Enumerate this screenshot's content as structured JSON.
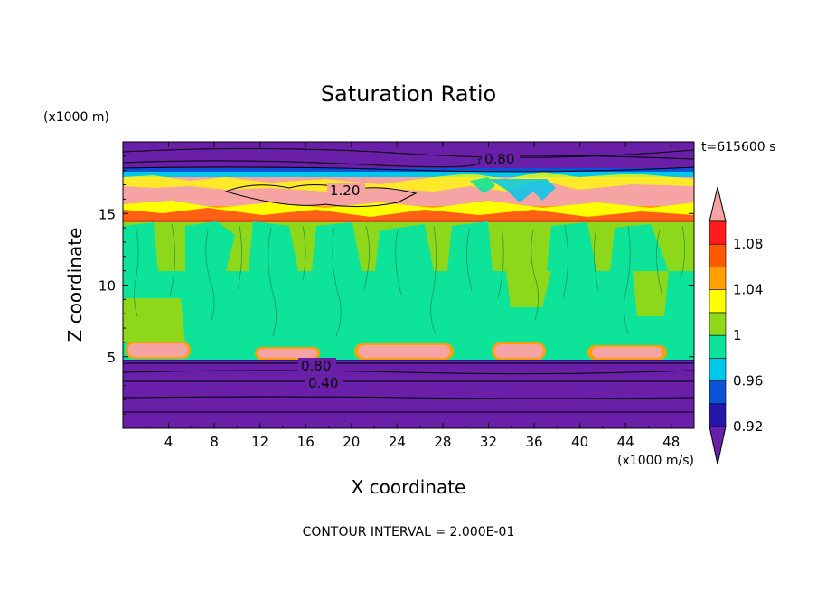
{
  "chart_data": {
    "type": "heatmap",
    "title": "Saturation Ratio",
    "xlabel": "X coordinate",
    "ylabel": "Z coordinate",
    "x_units": "(x1000 m/s)",
    "y_units": "(x1000 m)",
    "time_label": "t=615600 s",
    "footer": "CONTOUR INTERVAL = 2.000E-01",
    "xlim": [
      0,
      50
    ],
    "ylim": [
      0,
      20
    ],
    "x_ticks": [
      "4",
      "8",
      "12",
      "16",
      "20",
      "24",
      "28",
      "32",
      "36",
      "40",
      "44",
      "48"
    ],
    "y_ticks": [
      "5",
      "10",
      "15"
    ],
    "contour_labels": [
      "0.80",
      "1.20",
      "0.80",
      "0.40"
    ],
    "colorbar": {
      "levels": [
        0.92,
        0.94,
        0.96,
        0.98,
        1.0,
        1.02,
        1.04,
        1.06,
        1.08,
        1.1
      ],
      "tick_labels": [
        "0.92",
        "0.96",
        "1",
        "1.04",
        "1.08"
      ],
      "colors": [
        "#6a1fa8",
        "#2416a8",
        "#0a52d6",
        "#00c8ec",
        "#0ee39a",
        "#8ed81c",
        "#ffff00",
        "#ffa000",
        "#ff5a00",
        "#ff1c1c",
        "#f5a3a3"
      ],
      "extend": "both"
    },
    "bands": [
      {
        "z": [
          0,
          4.6
        ],
        "value": "<0.92"
      },
      {
        "z": [
          4.6,
          5.0
        ],
        "value": "0.92-0.98"
      },
      {
        "z": [
          5.0,
          14.5
        ],
        "value": "0.98-1.02"
      },
      {
        "z": [
          14.5,
          15.5
        ],
        "value": "1.02-1.10"
      },
      {
        "z": [
          15.5,
          17.5
        ],
        "value": ">1.10"
      },
      {
        "z": [
          17.5,
          18.3
        ],
        "value": "0.92-1.02"
      },
      {
        "z": [
          18.3,
          20
        ],
        "value": "<0.92"
      }
    ]
  }
}
